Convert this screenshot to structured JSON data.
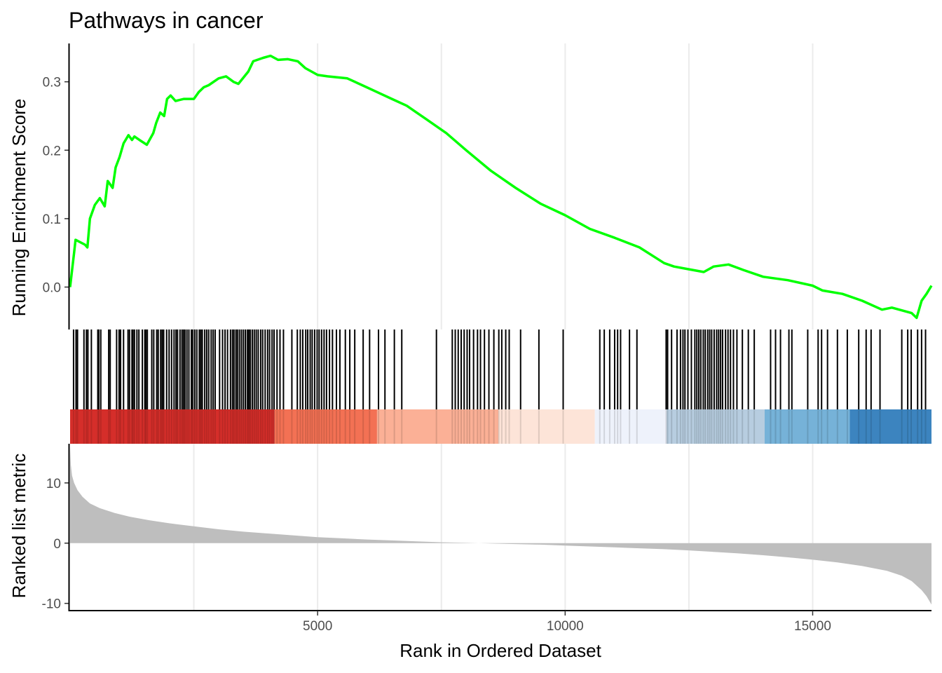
{
  "chart_data": {
    "type": "line",
    "title": "Pathways in cancer",
    "xlabel": "Rank in Ordered Dataset",
    "xlim": [
      0,
      17400
    ],
    "x_ticks": [
      5000,
      10000,
      15000
    ],
    "x_tick_labels": [
      "5000",
      "10000",
      "15000"
    ],
    "grid": "vertical major gridlines",
    "panels": [
      {
        "name": "running-enrichment-score",
        "type": "line",
        "ylabel": "Running Enrichment Score",
        "ylim": [
          -0.062,
          0.356
        ],
        "y_ticks": [
          0.0,
          0.1,
          0.2,
          0.3
        ],
        "y_tick_labels": [
          "0.0",
          "0.1",
          "0.2",
          "0.3"
        ],
        "line_color": "#00ff00",
        "points": [
          [
            0,
            0.0
          ],
          [
            80,
            0.05
          ],
          [
            110,
            0.069
          ],
          [
            300,
            0.062
          ],
          [
            350,
            0.058
          ],
          [
            400,
            0.1
          ],
          [
            500,
            0.12
          ],
          [
            600,
            0.13
          ],
          [
            700,
            0.118
          ],
          [
            760,
            0.155
          ],
          [
            860,
            0.145
          ],
          [
            920,
            0.175
          ],
          [
            1000,
            0.19
          ],
          [
            1080,
            0.21
          ],
          [
            1180,
            0.222
          ],
          [
            1250,
            0.215
          ],
          [
            1300,
            0.22
          ],
          [
            1400,
            0.215
          ],
          [
            1550,
            0.208
          ],
          [
            1680,
            0.225
          ],
          [
            1740,
            0.24
          ],
          [
            1820,
            0.255
          ],
          [
            1900,
            0.25
          ],
          [
            1960,
            0.275
          ],
          [
            2030,
            0.28
          ],
          [
            2130,
            0.272
          ],
          [
            2300,
            0.275
          ],
          [
            2500,
            0.275
          ],
          [
            2600,
            0.285
          ],
          [
            2700,
            0.292
          ],
          [
            2800,
            0.295
          ],
          [
            3000,
            0.305
          ],
          [
            3150,
            0.308
          ],
          [
            3300,
            0.3
          ],
          [
            3400,
            0.297
          ],
          [
            3600,
            0.315
          ],
          [
            3700,
            0.33
          ],
          [
            3900,
            0.335
          ],
          [
            4050,
            0.338
          ],
          [
            4200,
            0.332
          ],
          [
            4400,
            0.333
          ],
          [
            4600,
            0.33
          ],
          [
            4750,
            0.32
          ],
          [
            5000,
            0.31
          ],
          [
            5200,
            0.308
          ],
          [
            5600,
            0.305
          ],
          [
            5900,
            0.295
          ],
          [
            6200,
            0.285
          ],
          [
            6500,
            0.275
          ],
          [
            6800,
            0.265
          ],
          [
            7000,
            0.255
          ],
          [
            7200,
            0.245
          ],
          [
            7600,
            0.225
          ],
          [
            8000,
            0.2
          ],
          [
            8500,
            0.17
          ],
          [
            9000,
            0.145
          ],
          [
            9500,
            0.122
          ],
          [
            10000,
            0.105
          ],
          [
            10500,
            0.085
          ],
          [
            11000,
            0.072
          ],
          [
            11500,
            0.058
          ],
          [
            12000,
            0.035
          ],
          [
            12200,
            0.03
          ],
          [
            12500,
            0.026
          ],
          [
            12800,
            0.022
          ],
          [
            13000,
            0.03
          ],
          [
            13300,
            0.033
          ],
          [
            13600,
            0.025
          ],
          [
            14000,
            0.015
          ],
          [
            14500,
            0.01
          ],
          [
            15000,
            0.002
          ],
          [
            15200,
            -0.005
          ],
          [
            15600,
            -0.01
          ],
          [
            16000,
            -0.02
          ],
          [
            16400,
            -0.033
          ],
          [
            16600,
            -0.03
          ],
          [
            16800,
            -0.034
          ],
          [
            17000,
            -0.038
          ],
          [
            17100,
            -0.045
          ],
          [
            17200,
            -0.02
          ],
          [
            17300,
            -0.01
          ],
          [
            17400,
            0.002
          ]
        ]
      },
      {
        "name": "gene-hits",
        "type": "barcode",
        "line_color": "#000000",
        "hits": [
          70,
          120,
          150,
          280,
          330,
          360,
          430,
          560,
          580,
          620,
          780,
          810,
          940,
          990,
          1020,
          1080,
          1170,
          1200,
          1250,
          1270,
          1300,
          1350,
          1390,
          1460,
          1510,
          1530,
          1560,
          1650,
          1690,
          1750,
          1780,
          1830,
          1860,
          1890,
          1950,
          2000,
          2050,
          2100,
          2140,
          2170,
          2220,
          2260,
          2290,
          2320,
          2360,
          2400,
          2450,
          2480,
          2520,
          2560,
          2610,
          2640,
          2670,
          2720,
          2760,
          2800,
          2850,
          2890,
          2930,
          3020,
          3080,
          3130,
          3180,
          3240,
          3280,
          3310,
          3350,
          3380,
          3420,
          3460,
          3500,
          3540,
          3580,
          3610,
          3640,
          3680,
          3720,
          3760,
          3800,
          3850,
          3890,
          3940,
          3990,
          4030,
          4080,
          4120,
          4180,
          4240,
          4310,
          4480,
          4590,
          4650,
          4700,
          4760,
          4800,
          4850,
          4890,
          4940,
          4990,
          5030,
          5080,
          5130,
          5180,
          5240,
          5300,
          5380,
          5450,
          5560,
          5650,
          5750,
          5920,
          6050,
          6230,
          6360,
          6550,
          6700,
          7400,
          7720,
          7780,
          7840,
          7900,
          7960,
          8020,
          8070,
          8150,
          8230,
          8290,
          8370,
          8460,
          8560,
          8660,
          8720,
          8800,
          8870,
          9100,
          9470,
          9960,
          10700,
          10790,
          10900,
          11000,
          11060,
          11120,
          11300,
          11450,
          12040,
          12070,
          12150,
          12260,
          12330,
          12380,
          12420,
          12480,
          12550,
          12620,
          12660,
          12700,
          12740,
          12790,
          12830,
          12880,
          12920,
          12960,
          13010,
          13060,
          13100,
          13140,
          13180,
          13240,
          13290,
          13340,
          13400,
          13470,
          13580,
          13700,
          13820,
          14150,
          14250,
          14350,
          14520,
          14580,
          14900,
          15110,
          15180,
          15300,
          15500,
          15700,
          15930,
          16080,
          16180,
          16360,
          16800,
          16920,
          16990,
          17120,
          17200,
          17280
        ]
      },
      {
        "name": "rank-color-band",
        "type": "heatmap",
        "segments": [
          {
            "from": 0,
            "to": 4130,
            "color": "#d52e2a"
          },
          {
            "from": 4130,
            "to": 6200,
            "color": "#f37154"
          },
          {
            "from": 6200,
            "to": 8650,
            "color": "#fbb096"
          },
          {
            "from": 8650,
            "to": 10600,
            "color": "#fde4d8"
          },
          {
            "from": 10600,
            "to": 12050,
            "color": "#eef2fb"
          },
          {
            "from": 12050,
            "to": 14030,
            "color": "#b7cde0"
          },
          {
            "from": 14030,
            "to": 15750,
            "color": "#76b2d8"
          },
          {
            "from": 15750,
            "to": 17400,
            "color": "#3c84bf"
          }
        ]
      },
      {
        "name": "ranked-list-metric",
        "type": "area",
        "ylabel": "Ranked list metric",
        "ylim": [
          -11.2,
          16.5
        ],
        "y_ticks": [
          -10,
          0,
          10
        ],
        "y_tick_labels": [
          "-10",
          "0",
          "10"
        ],
        "fill_color": "#bebebe",
        "points": [
          [
            0,
            16
          ],
          [
            15,
            13
          ],
          [
            40,
            11.2
          ],
          [
            80,
            10
          ],
          [
            150,
            8.8
          ],
          [
            250,
            7.7
          ],
          [
            400,
            6.6
          ],
          [
            600,
            5.8
          ],
          [
            900,
            5.0
          ],
          [
            1200,
            4.4
          ],
          [
            1600,
            3.8
          ],
          [
            2000,
            3.3
          ],
          [
            2500,
            2.8
          ],
          [
            3000,
            2.3
          ],
          [
            3500,
            1.9
          ],
          [
            4000,
            1.6
          ],
          [
            4500,
            1.3
          ],
          [
            5000,
            1.0
          ],
          [
            5500,
            0.8
          ],
          [
            6000,
            0.6
          ],
          [
            6500,
            0.45
          ],
          [
            7000,
            0.3
          ],
          [
            7500,
            0.15
          ],
          [
            8000,
            0.05
          ],
          [
            8500,
            -0.05
          ],
          [
            9000,
            -0.15
          ],
          [
            9500,
            -0.25
          ],
          [
            10000,
            -0.4
          ],
          [
            10500,
            -0.55
          ],
          [
            11000,
            -0.7
          ],
          [
            11500,
            -0.85
          ],
          [
            12000,
            -1.0
          ],
          [
            12500,
            -1.2
          ],
          [
            13000,
            -1.45
          ],
          [
            13500,
            -1.7
          ],
          [
            14000,
            -2.0
          ],
          [
            14500,
            -2.35
          ],
          [
            15000,
            -2.75
          ],
          [
            15500,
            -3.2
          ],
          [
            16000,
            -3.8
          ],
          [
            16500,
            -4.6
          ],
          [
            16800,
            -5.4
          ],
          [
            17000,
            -6.3
          ],
          [
            17200,
            -7.8
          ],
          [
            17300,
            -8.8
          ],
          [
            17400,
            -10.2
          ]
        ]
      }
    ]
  }
}
